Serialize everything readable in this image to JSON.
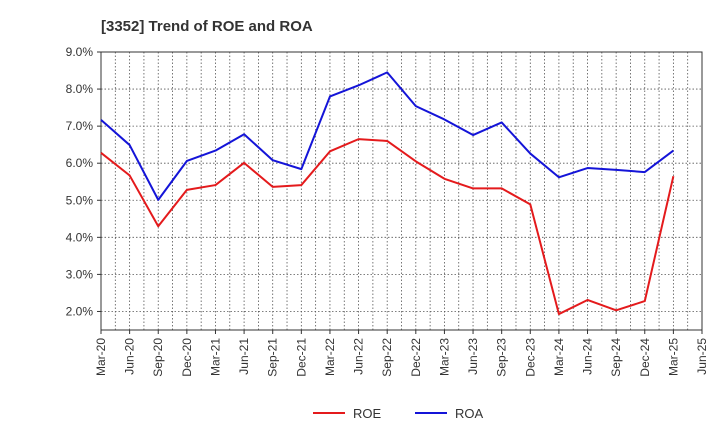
{
  "chart_data": {
    "type": "line",
    "title": "[3352]  Trend of ROE and ROA",
    "xlabel": "",
    "ylabel": "",
    "x": [
      "Mar-20",
      "Jun-20",
      "Sep-20",
      "Dec-20",
      "Mar-21",
      "Jun-21",
      "Sep-21",
      "Dec-21",
      "Mar-22",
      "Jun-22",
      "Sep-22",
      "Dec-22",
      "Mar-23",
      "Jun-23",
      "Sep-23",
      "Dec-23",
      "Mar-24",
      "Jun-24",
      "Sep-24",
      "Dec-24",
      "Mar-25",
      "Jun-25"
    ],
    "ylim": [
      1.5,
      9.0
    ],
    "yticks": [
      2.0,
      3.0,
      4.0,
      5.0,
      6.0,
      7.0,
      8.0,
      9.0
    ],
    "ytick_labels": [
      "2.0%",
      "3.0%",
      "4.0%",
      "5.0%",
      "6.0%",
      "7.0%",
      "8.0%",
      "9.0%"
    ],
    "grid": true,
    "legend_position": "bottom",
    "series": [
      {
        "name": "ROE",
        "color": "#e41a1c",
        "values": [
          6.28,
          5.67,
          4.3,
          5.28,
          5.41,
          6.01,
          5.36,
          5.41,
          6.32,
          6.65,
          6.6,
          6.05,
          5.58,
          5.32,
          5.32,
          4.89,
          1.93,
          2.31,
          2.03,
          2.28,
          5.65,
          null
        ]
      },
      {
        "name": "ROA",
        "color": "#1414d8",
        "values": [
          7.17,
          6.49,
          5.01,
          6.06,
          6.34,
          6.78,
          6.08,
          5.84,
          7.8,
          8.1,
          8.45,
          7.54,
          7.18,
          6.76,
          7.1,
          6.26,
          5.62,
          5.87,
          5.82,
          5.76,
          6.34,
          null
        ]
      }
    ]
  }
}
